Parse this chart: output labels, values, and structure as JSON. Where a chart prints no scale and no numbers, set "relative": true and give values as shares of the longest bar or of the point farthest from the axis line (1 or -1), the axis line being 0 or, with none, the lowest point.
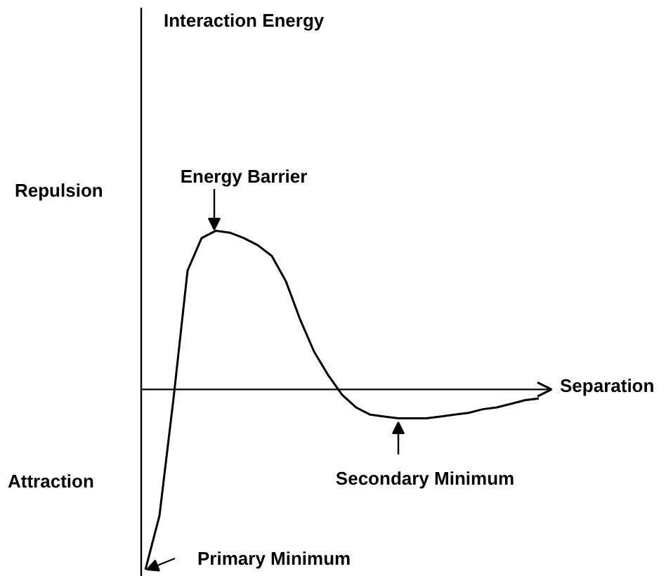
{
  "chart_data": {
    "type": "line",
    "relative": true,
    "xlabel": "Separation",
    "color": "#000000",
    "categories": [
      null,
      null,
      null,
      null,
      null,
      null,
      null,
      null,
      null,
      null,
      null,
      null,
      null,
      null,
      null,
      null,
      null,
      null,
      null,
      null,
      null,
      null,
      null,
      null,
      null,
      null,
      null,
      null,
      null
    ],
    "values": [
      -1,
      -0.7,
      -0.05,
      0.66,
      0.84,
      0.88,
      0.87,
      0.84,
      0.8,
      0.74,
      0.6,
      0.39,
      0.21,
      0.08,
      -0.03,
      -0.1,
      -0.14,
      -0.15,
      -0.16,
      -0.16,
      -0.16,
      -0.15,
      -0.14,
      -0.13,
      -0.11,
      -0.1,
      -0.08,
      -0.06,
      -0.05
    ],
    "annotations": [
      "Interaction Energy",
      "Repulsion",
      "Attraction",
      "Energy Barrier",
      "Secondary Minimum",
      "Primary Minimum"
    ]
  }
}
